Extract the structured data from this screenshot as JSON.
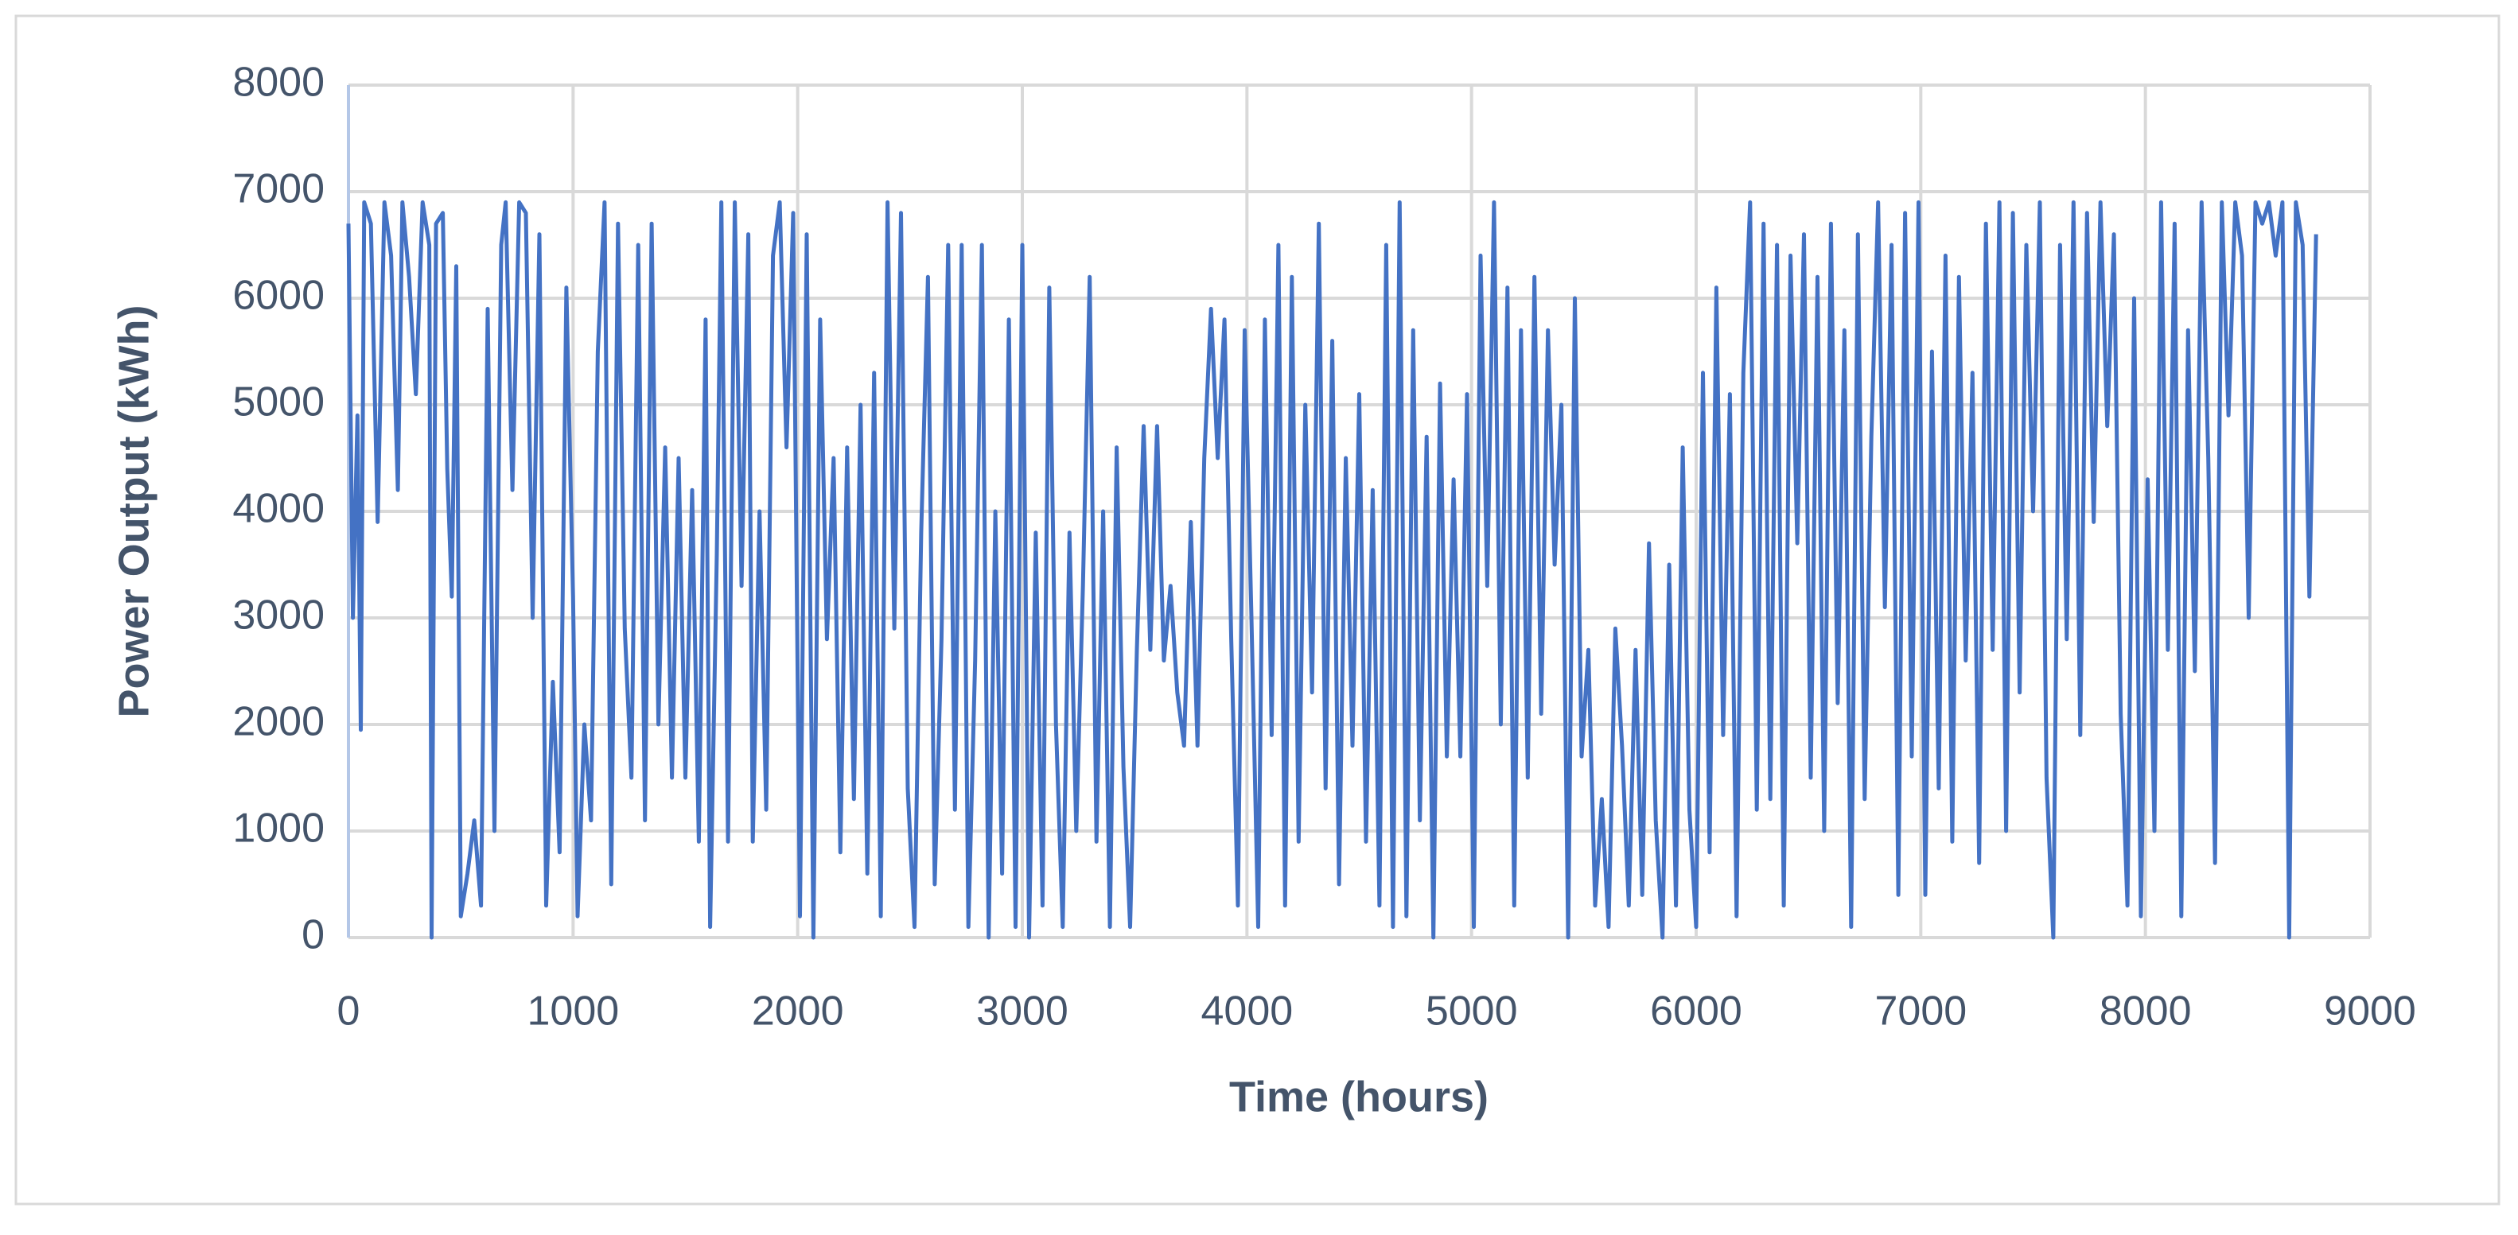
{
  "chart_data": {
    "type": "line",
    "x_label": "Time (hours)",
    "y_label": "Power Output (kWh)",
    "color": "#4472c4",
    "grid": true,
    "xlim": [
      0,
      9000
    ],
    "xticks": [
      0,
      1000,
      2000,
      3000,
      4000,
      5000,
      6000,
      7000,
      8000,
      9000
    ],
    "ylim": [
      0,
      8000
    ],
    "yticks": [
      0,
      1000,
      2000,
      3000,
      4000,
      5000,
      6000,
      7000,
      8000
    ],
    "x": [
      0,
      20,
      40,
      55,
      70,
      100,
      130,
      160,
      190,
      220,
      240,
      270,
      300,
      330,
      360,
      370,
      390,
      420,
      440,
      460,
      480,
      500,
      530,
      560,
      590,
      620,
      650,
      680,
      700,
      730,
      760,
      790,
      820,
      850,
      880,
      910,
      940,
      970,
      1000,
      1020,
      1050,
      1080,
      1110,
      1140,
      1170,
      1200,
      1230,
      1260,
      1290,
      1320,
      1350,
      1380,
      1410,
      1440,
      1470,
      1500,
      1530,
      1560,
      1590,
      1610,
      1640,
      1660,
      1690,
      1720,
      1750,
      1780,
      1800,
      1830,
      1860,
      1890,
      1920,
      1950,
      1980,
      2010,
      2040,
      2070,
      2100,
      2130,
      2160,
      2190,
      2220,
      2250,
      2280,
      2310,
      2340,
      2370,
      2400,
      2430,
      2460,
      2490,
      2520,
      2550,
      2580,
      2610,
      2640,
      2670,
      2700,
      2730,
      2760,
      2790,
      2820,
      2850,
      2880,
      2910,
      2940,
      2970,
      3000,
      3030,
      3060,
      3090,
      3120,
      3150,
      3180,
      3210,
      3240,
      3270,
      3300,
      3330,
      3360,
      3390,
      3420,
      3450,
      3480,
      3510,
      3540,
      3570,
      3600,
      3630,
      3660,
      3690,
      3720,
      3750,
      3780,
      3810,
      3840,
      3870,
      3900,
      3930,
      3960,
      3990,
      4020,
      4050,
      4080,
      4110,
      4140,
      4170,
      4200,
      4230,
      4260,
      4290,
      4320,
      4350,
      4380,
      4410,
      4440,
      4470,
      4500,
      4530,
      4560,
      4590,
      4620,
      4650,
      4680,
      4710,
      4740,
      4770,
      4800,
      4830,
      4860,
      4890,
      4920,
      4950,
      4980,
      5010,
      5040,
      5070,
      5100,
      5130,
      5160,
      5190,
      5220,
      5250,
      5280,
      5310,
      5340,
      5370,
      5400,
      5430,
      5460,
      5490,
      5520,
      5550,
      5580,
      5610,
      5640,
      5670,
      5700,
      5730,
      5760,
      5790,
      5820,
      5850,
      5880,
      5910,
      5940,
      5970,
      6000,
      6030,
      6060,
      6090,
      6120,
      6150,
      6180,
      6210,
      6240,
      6270,
      6300,
      6330,
      6360,
      6390,
      6420,
      6450,
      6480,
      6510,
      6540,
      6570,
      6600,
      6630,
      6660,
      6690,
      6720,
      6750,
      6780,
      6810,
      6840,
      6870,
      6900,
      6930,
      6960,
      6990,
      7020,
      7050,
      7080,
      7110,
      7140,
      7170,
      7200,
      7230,
      7260,
      7290,
      7320,
      7350,
      7380,
      7410,
      7440,
      7470,
      7500,
      7530,
      7560,
      7590,
      7620,
      7650,
      7680,
      7710,
      7740,
      7770,
      7800,
      7830,
      7860,
      7890,
      7920,
      7950,
      7980,
      8010,
      8040,
      8070,
      8100,
      8130,
      8160,
      8190,
      8220,
      8250,
      8280,
      8310,
      8340,
      8370,
      8400,
      8430,
      8460,
      8490,
      8520,
      8550,
      8580,
      8610,
      8640,
      8670,
      8700,
      8730,
      8760
    ],
    "values": [
      6700,
      3000,
      4900,
      1950,
      6900,
      6700,
      3900,
      6900,
      6400,
      4200,
      6900,
      6200,
      5100,
      6900,
      6500,
      0,
      6700,
      6800,
      4400,
      3200,
      6300,
      200,
      600,
      1100,
      300,
      5900,
      1000,
      6500,
      6900,
      4200,
      6900,
      6800,
      3000,
      6600,
      300,
      2400,
      800,
      6100,
      3200,
      200,
      2000,
      1100,
      5500,
      6900,
      500,
      6700,
      2900,
      1500,
      6500,
      1100,
      6700,
      2000,
      4600,
      1500,
      4500,
      1500,
      4200,
      900,
      5800,
      100,
      3600,
      6900,
      900,
      6900,
      3300,
      6600,
      900,
      4000,
      1200,
      6400,
      6900,
      4600,
      6800,
      200,
      6600,
      0,
      5800,
      2800,
      4500,
      800,
      4600,
      1300,
      5000,
      600,
      5300,
      200,
      6900,
      2900,
      6800,
      1400,
      100,
      3800,
      6200,
      500,
      2800,
      6500,
      1200,
      6500,
      100,
      2600,
      6500,
      0,
      4000,
      600,
      5800,
      100,
      6500,
      0,
      3800,
      300,
      6100,
      2000,
      100,
      3800,
      1000,
      3300,
      6200,
      900,
      4000,
      100,
      4600,
      1600,
      100,
      2700,
      4800,
      2700,
      4800,
      2600,
      3300,
      2300,
      1800,
      3900,
      1800,
      4500,
      5900,
      4500,
      5800,
      2800,
      300,
      5700,
      3000,
      100,
      5800,
      1900,
      6500,
      300,
      6200,
      900,
      5000,
      2300,
      6700,
      1400,
      5600,
      500,
      4500,
      1800,
      5100,
      900,
      4200,
      300,
      6500,
      100,
      6900,
      200,
      5700,
      1100,
      4700,
      0,
      5200,
      1700,
      4300,
      1700,
      5100,
      100,
      6400,
      3300,
      6900,
      2000,
      6100,
      300,
      5700,
      1500,
      6200,
      2100,
      5700,
      3500,
      5000,
      0,
      6000,
      1700,
      2700,
      300,
      1300,
      100,
      2900,
      1800,
      300,
      2700,
      400,
      3700,
      1100,
      0,
      3500,
      300,
      4600,
      1200,
      100,
      5300,
      800,
      6100,
      1900,
      5100,
      200,
      5300,
      6900,
      1200,
      6700,
      1300,
      6500,
      300,
      6400,
      3700,
      6600,
      1500,
      6200,
      1000,
      6700,
      2200,
      5700,
      100,
      6600,
      1300,
      4700,
      6900,
      3100,
      6500,
      400,
      6800,
      1700,
      6900,
      400,
      5500,
      1400,
      6400,
      900,
      6200,
      2600,
      5300,
      700,
      6700,
      2700,
      6900,
      1000,
      6800,
      2300,
      6500,
      4000,
      6900,
      1500,
      0,
      6500,
      2800,
      6900,
      1900,
      6800,
      3900,
      6900,
      4800,
      6600,
      2100,
      300,
      6000,
      200,
      4300,
      1000,
      6900,
      2700,
      6700,
      200,
      5700,
      2500,
      6900,
      4500,
      700,
      6900,
      4900,
      6900,
      6400,
      3000,
      6900,
      6700,
      6900,
      6400,
      6900,
      0,
      6900,
      6500,
      3200,
      6600
    ]
  }
}
